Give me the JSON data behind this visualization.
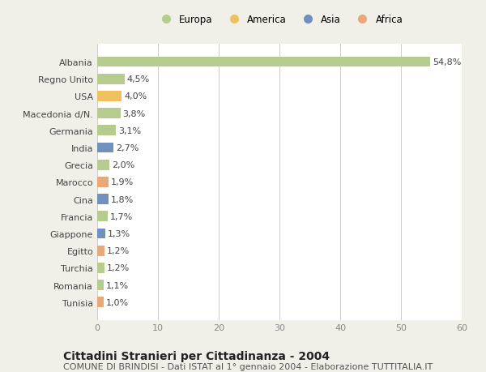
{
  "categories": [
    "Albania",
    "Regno Unito",
    "USA",
    "Macedonia d/N.",
    "Germania",
    "India",
    "Grecia",
    "Marocco",
    "Cina",
    "Francia",
    "Giappone",
    "Egitto",
    "Turchia",
    "Romania",
    "Tunisia"
  ],
  "values": [
    54.8,
    4.5,
    4.0,
    3.8,
    3.1,
    2.7,
    2.0,
    1.9,
    1.8,
    1.7,
    1.3,
    1.2,
    1.2,
    1.1,
    1.0
  ],
  "labels": [
    "54,8%",
    "4,5%",
    "4,0%",
    "3,8%",
    "3,1%",
    "2,7%",
    "2,0%",
    "1,9%",
    "1,8%",
    "1,7%",
    "1,3%",
    "1,2%",
    "1,2%",
    "1,1%",
    "1,0%"
  ],
  "continents": [
    "Europa",
    "Europa",
    "America",
    "Europa",
    "Europa",
    "Asia",
    "Europa",
    "Africa",
    "Asia",
    "Europa",
    "Asia",
    "Africa",
    "Europa",
    "Europa",
    "Africa"
  ],
  "continent_colors": {
    "Europa": "#b5cc8e",
    "America": "#f0c060",
    "Asia": "#7090c0",
    "Africa": "#e8a878"
  },
  "legend_items": [
    "Europa",
    "America",
    "Asia",
    "Africa"
  ],
  "legend_colors": [
    "#b5cc8e",
    "#f0c060",
    "#7090c0",
    "#e8a878"
  ],
  "xlim": [
    0,
    60
  ],
  "xticks": [
    0,
    10,
    20,
    30,
    40,
    50,
    60
  ],
  "title": "Cittadini Stranieri per Cittadinanza - 2004",
  "subtitle": "COMUNE DI BRINDISI - Dati ISTAT al 1° gennaio 2004 - Elaborazione TUTTITALIA.IT",
  "background_color": "#f0f0e8",
  "bar_background": "#ffffff",
  "grid_color": "#cccccc",
  "title_fontsize": 10,
  "subtitle_fontsize": 8,
  "label_fontsize": 8,
  "tick_fontsize": 8,
  "legend_fontsize": 8.5
}
